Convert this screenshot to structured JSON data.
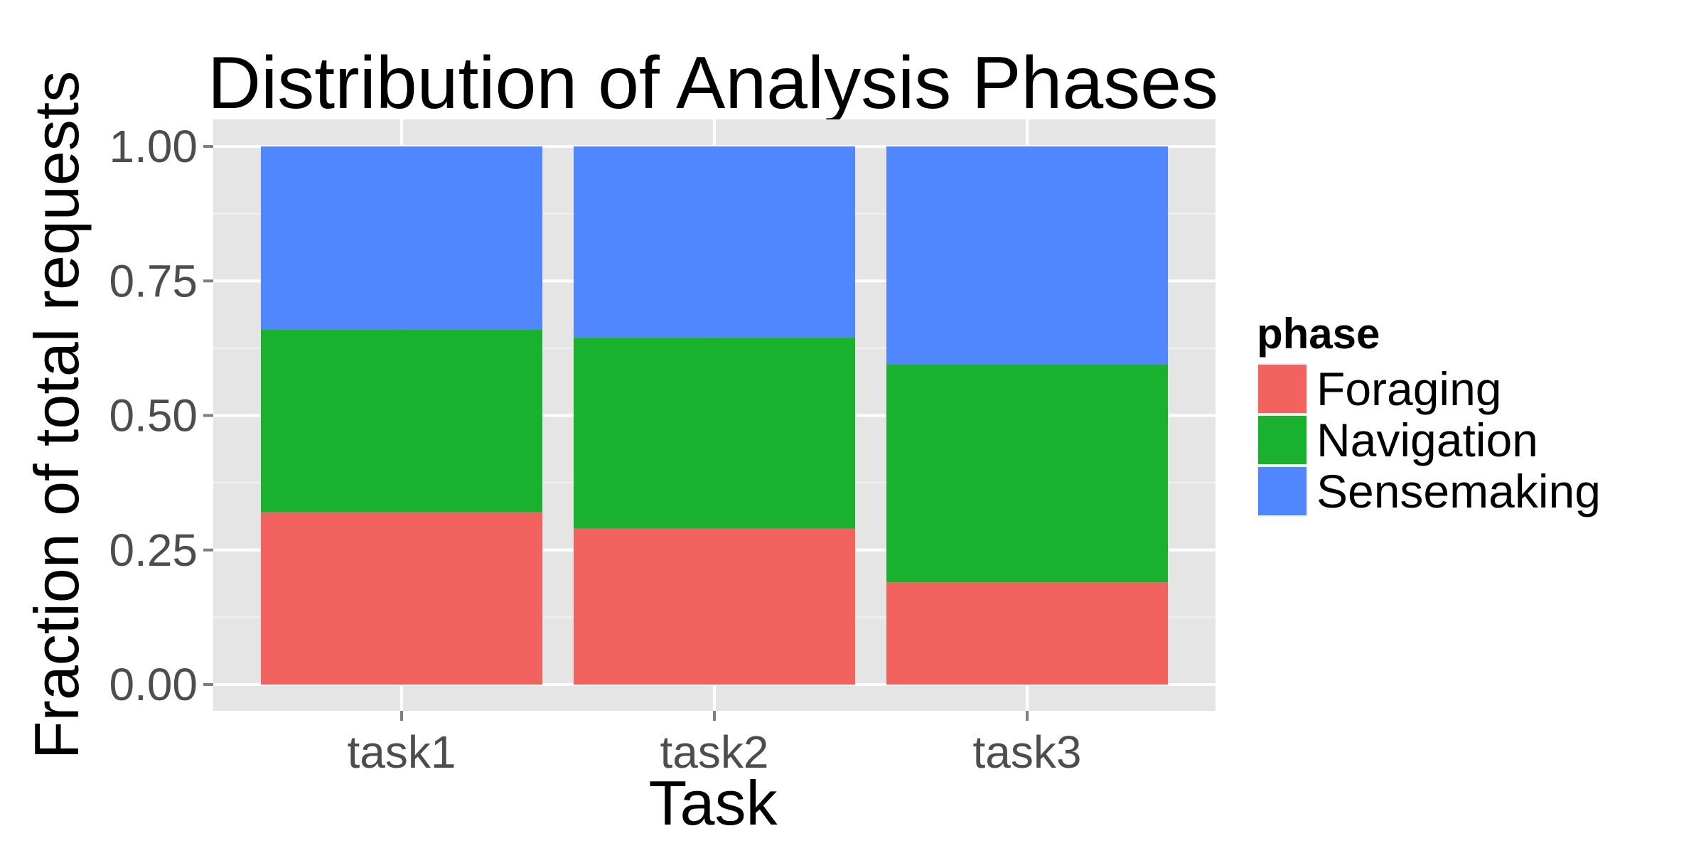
{
  "chart_data": {
    "type": "bar",
    "stacked": true,
    "title": "Distribution of Analysis Phases",
    "xlabel": "Task",
    "ylabel": "Fraction of total requests",
    "categories": [
      "task1",
      "task2",
      "task3"
    ],
    "ylim": [
      0,
      1
    ],
    "yticks": [
      "0.00",
      "0.25",
      "0.50",
      "0.75",
      "1.00"
    ],
    "grid": true,
    "legend": {
      "title": "phase",
      "position": "right"
    },
    "series": [
      {
        "name": "Foraging",
        "color": "#F26360",
        "values": [
          0.32,
          0.29,
          0.19
        ]
      },
      {
        "name": "Navigation",
        "color": "#1AB12F",
        "values": [
          0.34,
          0.355,
          0.405
        ]
      },
      {
        "name": "Sensemaking",
        "color": "#5086FF",
        "values": [
          0.34,
          0.355,
          0.405
        ]
      }
    ]
  }
}
